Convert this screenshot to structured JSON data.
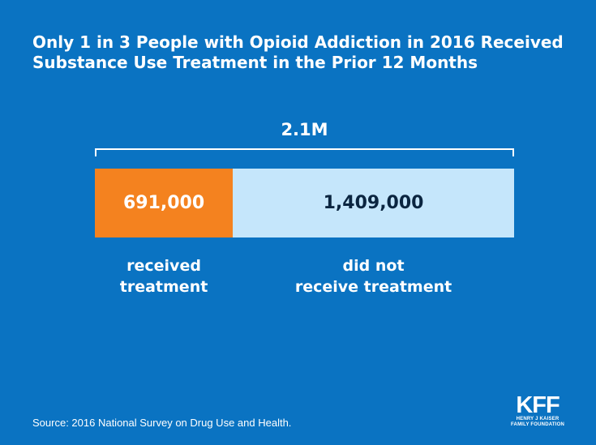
{
  "title": {
    "line1": "Only 1 in 3 People with Opioid Addiction in 2016 Received",
    "line2": "Substance Use Treatment in the Prior 12 Months"
  },
  "colors": {
    "background": "#0a73c2",
    "received": "#f4821f",
    "not_received": "#c5e6fb",
    "dark_text": "#0b2540"
  },
  "chart_data": {
    "type": "bar",
    "orientation": "horizontal-stacked",
    "total_label": "2.1M",
    "total": 2100000,
    "segments": [
      {
        "key": "received",
        "value": 691000,
        "value_label": "691,000",
        "label_lines": [
          "received",
          "treatment"
        ],
        "color": "#f4821f"
      },
      {
        "key": "not_received",
        "value": 1409000,
        "value_label": "1,409,000",
        "label_lines": [
          "did not",
          "receive treatment"
        ],
        "color": "#c5e6fb"
      }
    ]
  },
  "source": "Source: 2016 National Survey on Drug Use and Health.",
  "logo": {
    "mark": "KFF",
    "line1": "HENRY J KAISER",
    "line2": "FAMILY FOUNDATION"
  }
}
